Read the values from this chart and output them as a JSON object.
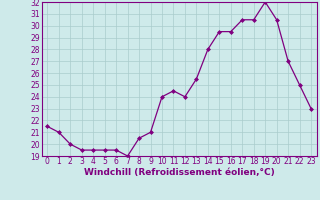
{
  "x": [
    0,
    1,
    2,
    3,
    4,
    5,
    6,
    7,
    8,
    9,
    10,
    11,
    12,
    13,
    14,
    15,
    16,
    17,
    18,
    19,
    20,
    21,
    22,
    23
  ],
  "y": [
    21.5,
    21.0,
    20.0,
    19.5,
    19.5,
    19.5,
    19.5,
    19.0,
    20.5,
    21.0,
    24.0,
    24.5,
    24.0,
    25.5,
    28.0,
    29.5,
    29.5,
    30.5,
    30.5,
    32.0,
    30.5,
    27.0,
    25.0,
    23.0
  ],
  "line_color": "#800080",
  "marker": "D",
  "marker_size": 2.0,
  "linewidth": 0.9,
  "xlabel": "Windchill (Refroidissement éolien,°C)",
  "xlabel_fontsize": 6.5,
  "ylim": [
    19,
    32
  ],
  "xlim": [
    -0.5,
    23.5
  ],
  "yticks": [
    19,
    20,
    21,
    22,
    23,
    24,
    25,
    26,
    27,
    28,
    29,
    30,
    31,
    32
  ],
  "xticks": [
    0,
    1,
    2,
    3,
    4,
    5,
    6,
    7,
    8,
    9,
    10,
    11,
    12,
    13,
    14,
    15,
    16,
    17,
    18,
    19,
    20,
    21,
    22,
    23
  ],
  "tick_fontsize": 5.5,
  "grid_color": "#aacccc",
  "bg_color": "#ceeaea",
  "fig_bg_color": "#ceeaea",
  "spine_color": "#800080"
}
